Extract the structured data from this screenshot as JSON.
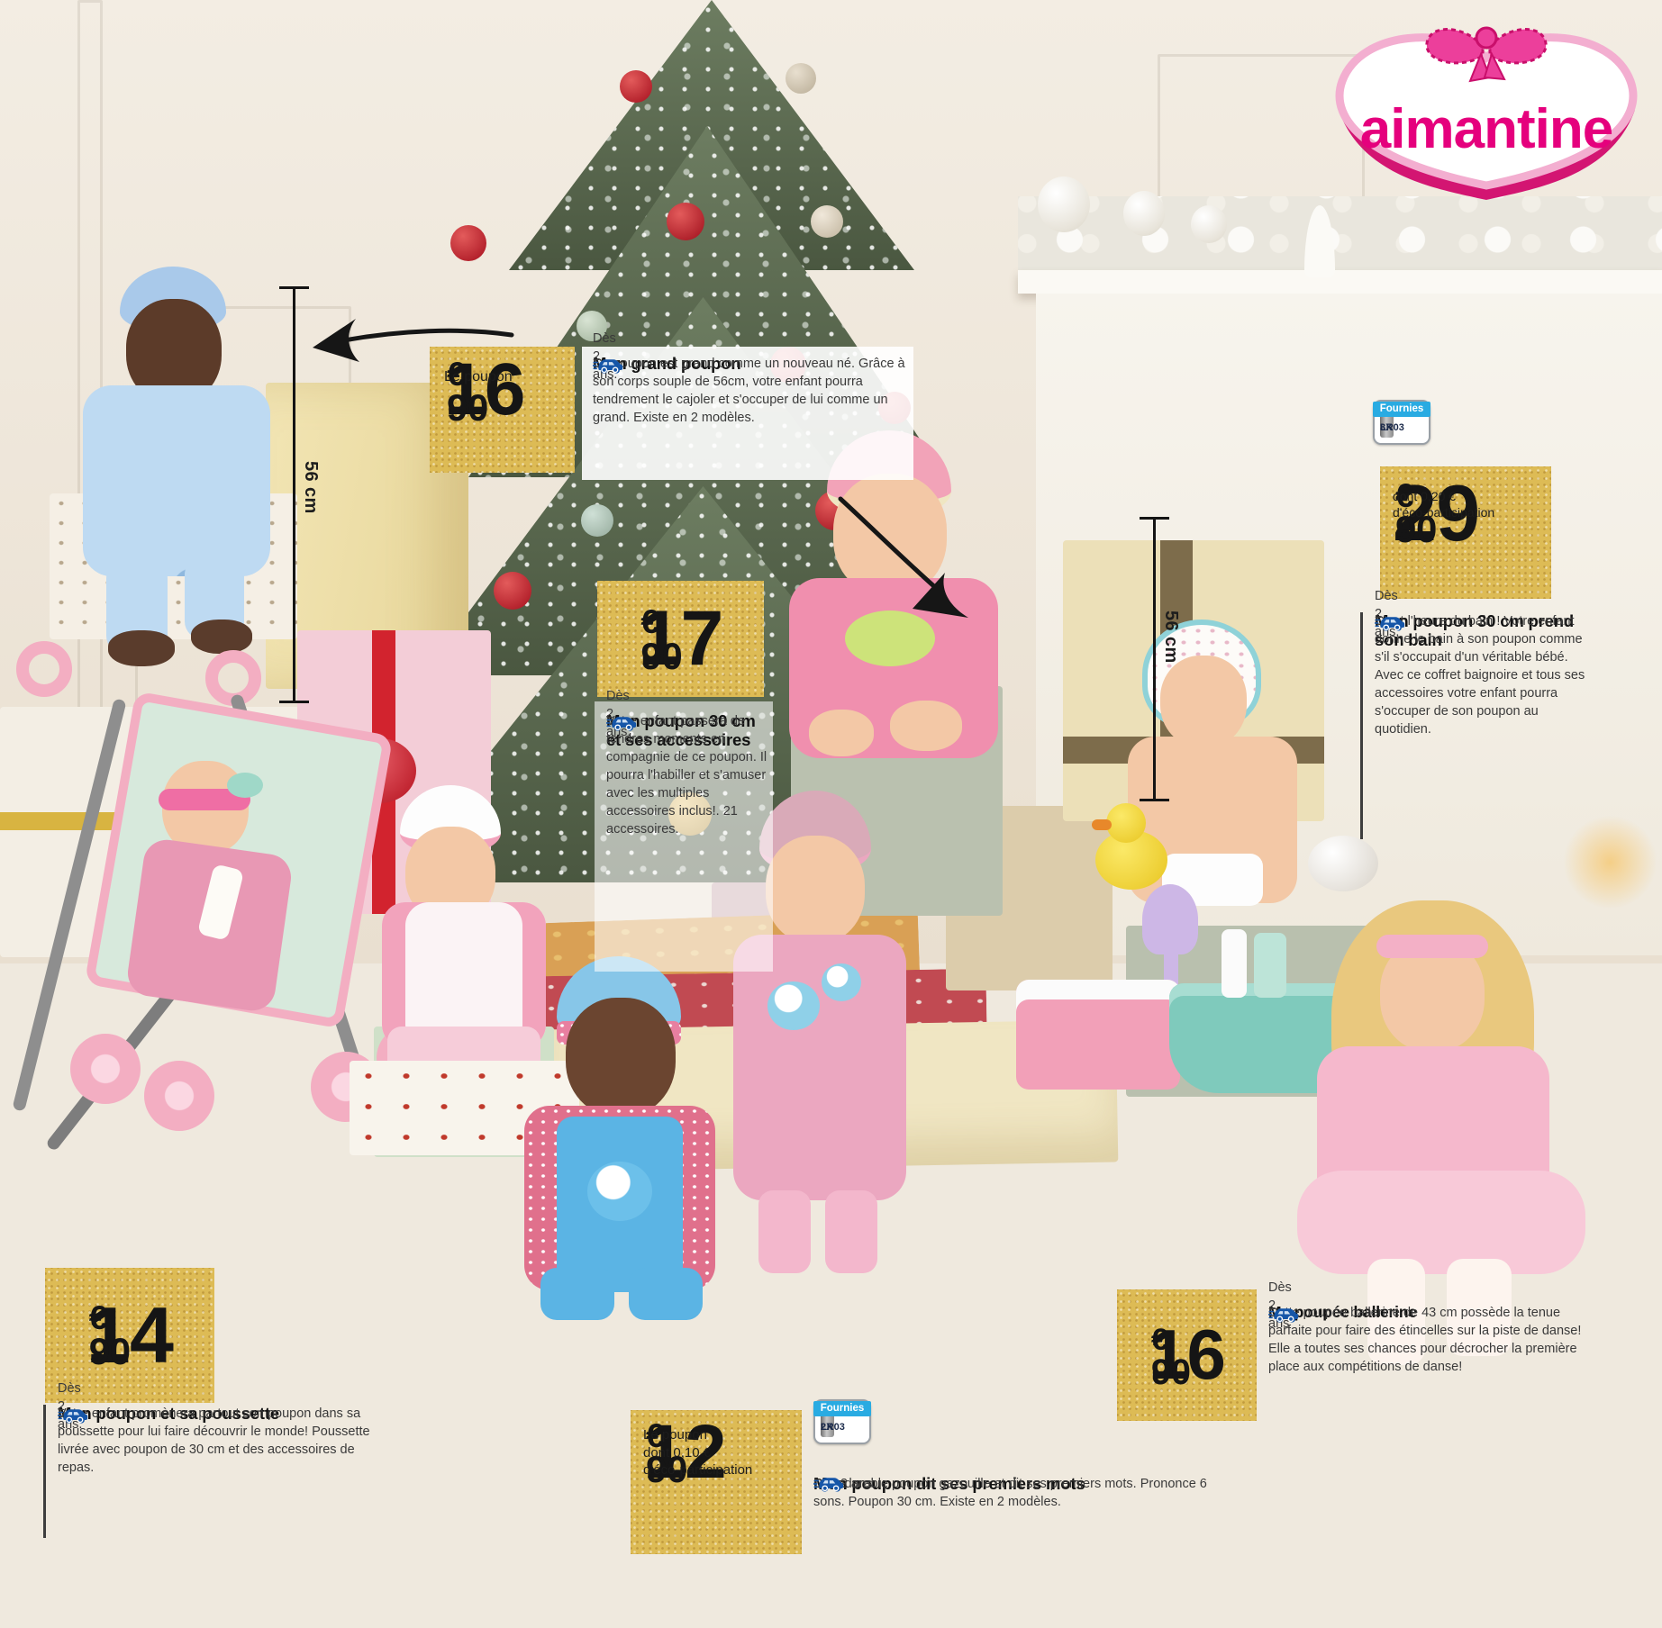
{
  "brand": {
    "name": "aimantine"
  },
  "currency": "€",
  "measurements": {
    "left": "56 cm",
    "right": "56 cm"
  },
  "battery_badges": {
    "bain": {
      "count": "3X",
      "type": "LR03",
      "label": "Fournies"
    },
    "mots": {
      "count": "2X",
      "type": "LR03",
      "label": "Fournies"
    }
  },
  "products": {
    "grand": {
      "price": "16",
      "cents": "90",
      "unit": "Le poupon",
      "title": "Mon grand poupon",
      "body": "Ce poupon est grand comme un nouveau né. Grâce à son corps souple de 56cm, votre enfant pourra tendrement le cajoler et s'occuper de lui comme un grand. Existe en 2 modèles.",
      "age": "Dès 2 ans."
    },
    "accessoires": {
      "price": "17",
      "cents": "90",
      "title": "Mon poupon 30 cm et ses accessoires",
      "body": "Votre enfant passera de tendres moments en compagnie de ce poupon. Il pourra l'habiller et s'amuser avec les multiples accessoires inclus!. 21 accessoires.",
      "age": "Dès 2 ans."
    },
    "bain": {
      "price": "29",
      "cents": "90",
      "eco_line1": "dont 0,20 €",
      "eco_line2": "d'éco-participation",
      "title": "Mon poupon 30 cm prend son bain",
      "body": "C'est l'heure du bain ! Votre enfant donne le bain à son poupon comme s'il s'occupait d'un véritable bébé. Avec ce coffret baignoire et tous ses accessoires votre enfant pourra s'occuper de son poupon au quotidien.",
      "age": "Dès 2 ans."
    },
    "poussette": {
      "price": "14",
      "cents": "90",
      "title": "Mon poupon et sa poussette",
      "body": "Votre enfant promènera partout son poupon dans sa poussette pour lui faire découvrir le monde! Poussette livrée avec poupon de 30 cm et des accessoires de repas.",
      "age": "Dès 2 ans."
    },
    "mots": {
      "price": "12",
      "cents": "90",
      "unit": "Le poupon",
      "eco_line1": "dont 0,10 €",
      "eco_line2": "d'éco-participation",
      "title": "Mon poupon dit ses premiers mots",
      "body": "Cet adorable poupon gazouille et dit ses premiers mots. Prononce 6 sons. Poupon 30 cm. Existe en 2 modèles.",
      "age": "Dès 2 ans."
    },
    "ballerine": {
      "price": "16",
      "cents": "90",
      "title": "Ma poupée ballerine",
      "body": "Cette poupée ballerine de 43 cm possède la tenue parfaite pour faire des étincelles sur la piste de danse! Elle a toutes ses chances pour décrocher la première place aux compétitions de danse!",
      "age": "Dès 2 ans"
    }
  },
  "colors": {
    "accent_pink": "#e5007d",
    "tag_gold": "#ddbb55",
    "battery_blue": "#29abe2",
    "car_blue": "#1656a8"
  }
}
